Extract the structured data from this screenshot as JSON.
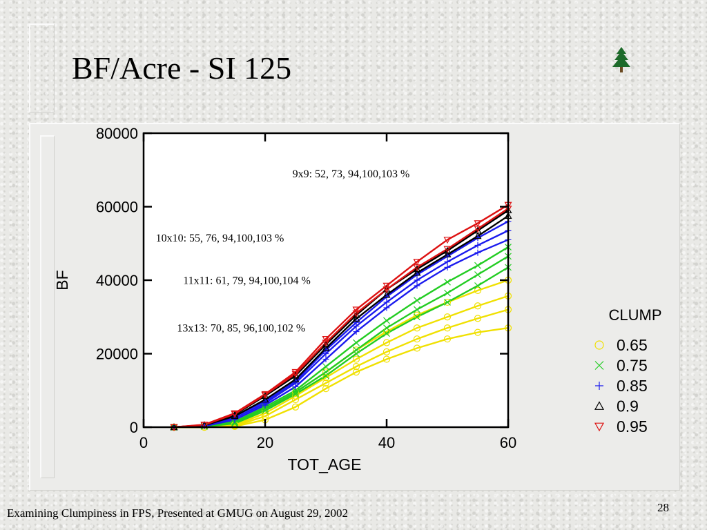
{
  "slide": {
    "title": "BF/Acre - SI 125",
    "footer": "Examining Clumpiness in FPS, Presented at GMUG on August 29, 2002",
    "page_number": "28",
    "logo_icon": "pine-tree-icon"
  },
  "chart_data": {
    "type": "line",
    "title": "",
    "xlabel": "TOT_AGE",
    "ylabel": "BF",
    "xlim": [
      0,
      60
    ],
    "ylim": [
      0,
      80000
    ],
    "xticks": [
      0,
      20,
      40,
      60
    ],
    "yticks": [
      0,
      20000,
      40000,
      60000,
      80000
    ],
    "grid": false,
    "legend_position": "right",
    "legend_title": "CLUMP",
    "x": [
      5,
      10,
      15,
      20,
      25,
      30,
      35,
      40,
      45,
      50,
      55,
      60
    ],
    "series": [
      {
        "name": "0.65",
        "color": "#f0e000",
        "marker": "circle",
        "curves": [
          [
            0,
            0,
            200,
            2000,
            5500,
            10500,
            15000,
            18500,
            21500,
            24000,
            25800,
            27000
          ],
          [
            0,
            0,
            300,
            3000,
            7500,
            12000,
            16500,
            20500,
            24000,
            27000,
            29600,
            32000
          ],
          [
            0,
            0,
            500,
            3800,
            8500,
            13500,
            18500,
            23000,
            27000,
            30000,
            33000,
            35700
          ],
          [
            0,
            0,
            700,
            4500,
            9500,
            15000,
            21000,
            26000,
            30500,
            34000,
            37200,
            40000
          ]
        ]
      },
      {
        "name": "0.75",
        "color": "#22cc22",
        "marker": "x",
        "curves": [
          [
            0,
            200,
            1000,
            4500,
            9000,
            14000,
            20000,
            25500,
            30000,
            34000,
            38500,
            43500
          ],
          [
            0,
            300,
            1300,
            5000,
            9500,
            15000,
            21000,
            27000,
            32000,
            36500,
            41500,
            46500
          ],
          [
            0,
            300,
            1500,
            5500,
            10000,
            16500,
            23000,
            29000,
            34500,
            39500,
            44000,
            49000
          ]
        ]
      },
      {
        "name": "0.85",
        "color": "#1a1aee",
        "marker": "plus",
        "curves": [
          [
            0,
            300,
            2000,
            6000,
            11000,
            18500,
            26000,
            32500,
            38500,
            43500,
            47500,
            51000
          ],
          [
            0,
            400,
            2500,
            6500,
            12000,
            20000,
            27500,
            34000,
            40000,
            45000,
            49500,
            53500
          ],
          [
            0,
            500,
            3000,
            7000,
            12500,
            21000,
            28500,
            35500,
            41500,
            46500,
            51500,
            56000
          ]
        ]
      },
      {
        "name": "0.9",
        "color": "#000000",
        "marker": "triangle-up",
        "curves": [
          [
            0,
            500,
            3000,
            7500,
            13000,
            21500,
            29500,
            36000,
            42000,
            47000,
            52000,
            57500
          ],
          [
            0,
            600,
            3400,
            8500,
            14000,
            22500,
            30500,
            37500,
            43000,
            48000,
            53500,
            59000
          ]
        ]
      },
      {
        "name": "0.95",
        "color": "#dd1111",
        "marker": "triangle-down",
        "curves": [
          [
            0,
            600,
            3600,
            8800,
            14500,
            23000,
            31000,
            37500,
            43500,
            48500,
            54000,
            59500
          ],
          [
            0,
            700,
            3800,
            9000,
            15000,
            24000,
            32000,
            38500,
            45000,
            51000,
            55500,
            60500
          ]
        ]
      }
    ],
    "annotations": [
      {
        "text": "9x9: 52, 73, 94,100,103 %"
      },
      {
        "text": "10x10: 55, 76, 94,100,103 %"
      },
      {
        "text": "11x11: 61, 79, 94,100,104 %"
      },
      {
        "text": "13x13: 70, 85, 96,100,102 %"
      }
    ]
  }
}
